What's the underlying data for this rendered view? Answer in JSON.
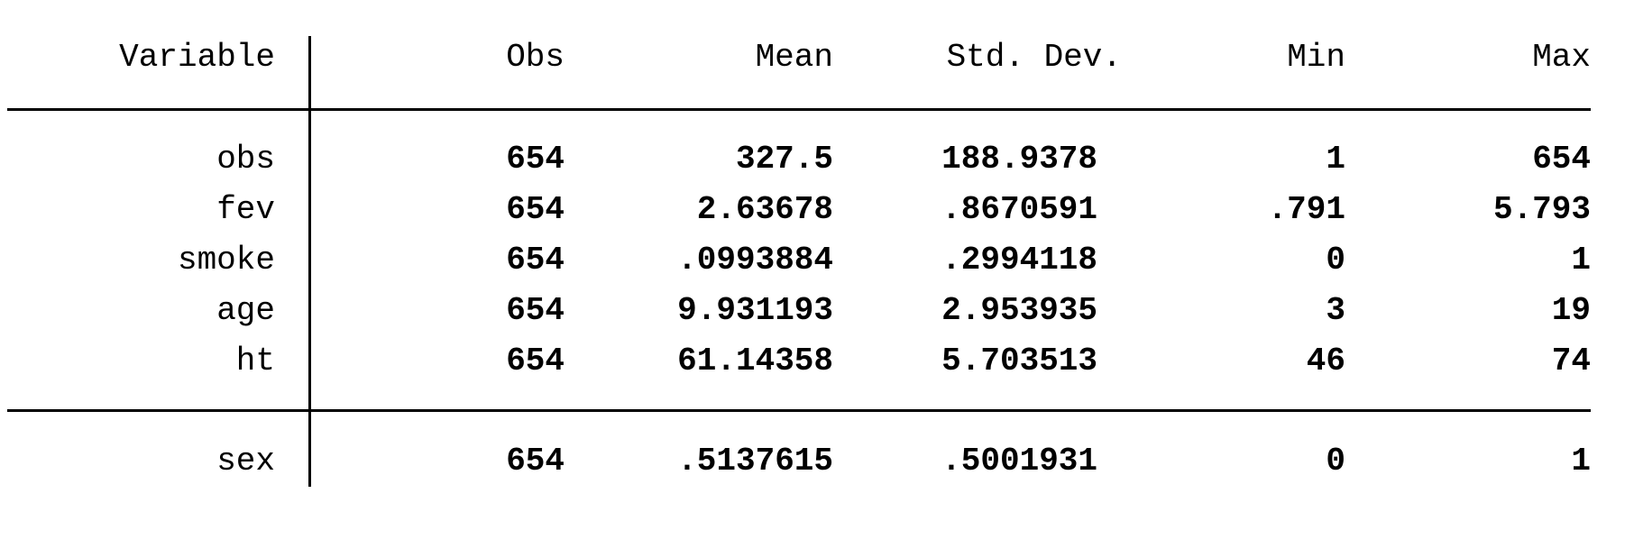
{
  "headers": {
    "variable": "Variable",
    "obs": "Obs",
    "mean": "Mean",
    "sd": "Std. Dev.",
    "min": "Min",
    "max": "Max"
  },
  "rows": [
    {
      "variable": "obs",
      "obs": "654",
      "mean": "327.5",
      "sd": "188.9378",
      "min": "1",
      "max": "654"
    },
    {
      "variable": "fev",
      "obs": "654",
      "mean": "2.63678",
      "sd": ".8670591",
      "min": ".791",
      "max": "5.793"
    },
    {
      "variable": "smoke",
      "obs": "654",
      "mean": ".0993884",
      "sd": ".2994118",
      "min": "0",
      "max": "1"
    },
    {
      "variable": "age",
      "obs": "654",
      "mean": "9.931193",
      "sd": "2.953935",
      "min": "3",
      "max": "19"
    },
    {
      "variable": "ht",
      "obs": "654",
      "mean": "61.14358",
      "sd": "5.703513",
      "min": "46",
      "max": "74"
    },
    {
      "variable": "sex",
      "obs": "654",
      "mean": ".5137615",
      "sd": ".5001931",
      "min": "0",
      "max": "1"
    }
  ]
}
